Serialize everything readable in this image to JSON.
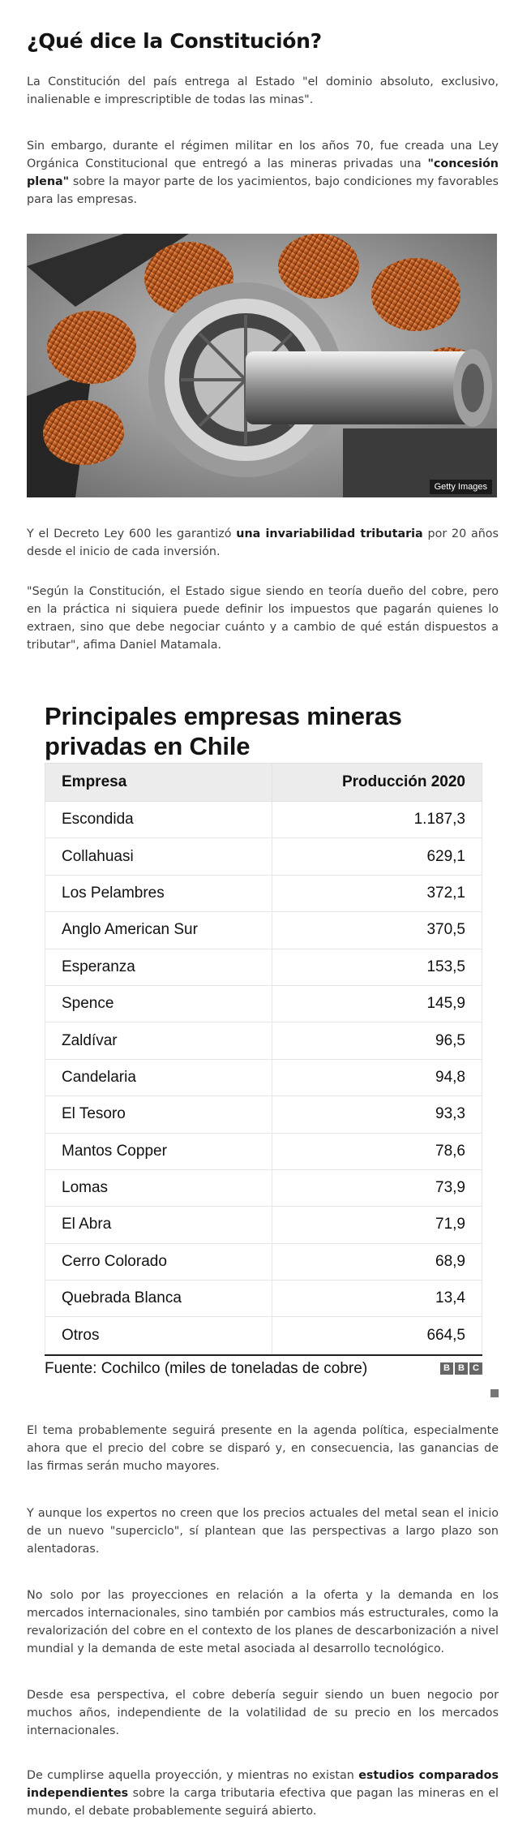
{
  "heading": "¿Qué dice la Constitución?",
  "p1": "La Constitución del país entrega al Estado \"el dominio absoluto, exclusivo, inalienable e imprescriptible de todas las minas\".",
  "p2": {
    "before": "Sin embargo, durante el régimen militar en los años 70, fue creada una Ley Orgánica Constitucional que entregó a las mineras privadas una ",
    "bold": "\"concesión plena\"",
    "after": " sobre la mayor parte de los yacimientos, bajo condiciones my favorables para las empresas."
  },
  "image": {
    "credit": "Getty Images",
    "subject": "copper-coils-motor"
  },
  "p3": {
    "before": "Y el Decreto Ley 600 les garantizó ",
    "bold": "una invariabilidad tributaria",
    "after": " por 20 años desde el inicio de cada inversión."
  },
  "p4": "\"Según la Constitución, el Estado sigue siendo en teoría dueño del cobre, pero en la práctica ni siquiera puede definir los impuestos que pagarán quienes lo extraen, sino que debe negociar cuánto y a cambio de qué están dispuestos a tributar\", afima Daniel Matamala.",
  "infographic": {
    "title": "Principales empresas mineras privadas en Chile",
    "col_company": "Empresa",
    "col_production": "Producción 2020",
    "source": "Fuente: Cochilco (miles de toneladas de cobre)",
    "logo_letters": [
      "B",
      "B",
      "C"
    ]
  },
  "chart_data": {
    "type": "table",
    "title": "Principales empresas mineras privadas en Chile",
    "columns": [
      "Empresa",
      "Producción 2020"
    ],
    "rows": [
      {
        "company": "Escondida",
        "production": "1.187,3"
      },
      {
        "company": "Collahuasi",
        "production": "629,1"
      },
      {
        "company": "Los Pelambres",
        "production": "372,1"
      },
      {
        "company": "Anglo American Sur",
        "production": "370,5"
      },
      {
        "company": "Esperanza",
        "production": "153,5"
      },
      {
        "company": "Spence",
        "production": "145,9"
      },
      {
        "company": "Zaldívar",
        "production": "96,5"
      },
      {
        "company": "Candelaria",
        "production": "94,8"
      },
      {
        "company": "El Tesoro",
        "production": "93,3"
      },
      {
        "company": "Mantos Copper",
        "production": "78,6"
      },
      {
        "company": "Lomas",
        "production": "73,9"
      },
      {
        "company": "El Abra",
        "production": "71,9"
      },
      {
        "company": "Cerro Colorado",
        "production": "68,9"
      },
      {
        "company": "Quebrada Blanca",
        "production": "13,4"
      },
      {
        "company": "Otros",
        "production": "664,5"
      }
    ]
  },
  "p5": "El tema probablemente seguirá presente en la agenda política, especialmente ahora que el precio del cobre se disparó y, en consecuencia, las ganancias de las firmas serán mucho mayores.",
  "p6": "Y aunque los expertos no creen que los precios actuales del metal sean el inicio de un nuevo \"superciclo\", sí plantean que las perspectivas a largo plazo son alentadoras.",
  "p7": "No solo por las proyecciones en relación a la oferta y la demanda en los mercados internacionales, sino también por cambios más estructurales, como la revalorización del cobre en el contexto de los planes de descarbonización a nivel mundial y la demanda de este metal asociada al desarrollo tecnológico.",
  "p8": "Desde esa perspectiva, el cobre debería seguir siendo un buen negocio por muchos años, independiente de la volatilidad de su precio en los mercados internacionales.",
  "p9": {
    "before": "De cumplirse aquella proyección, y mientras no existan ",
    "bold": "estudios comparados independientes",
    "after": " sobre la carga tributaria efectiva que pagan las mineras en el mundo, el debate probablemente seguirá abierto."
  }
}
